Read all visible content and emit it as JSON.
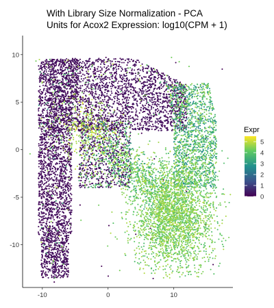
{
  "chart_data": {
    "type": "scatter",
    "title": "With Library Size Normalization - PCA",
    "subtitle": "Units for Acox2 Expression: log10(CPM + 1)",
    "xlabel": "",
    "ylabel": "",
    "xlim": [
      -13,
      19
    ],
    "ylim": [
      -14.5,
      12
    ],
    "x_ticks": [
      -10,
      0,
      10
    ],
    "y_ticks": [
      -10,
      -5,
      0,
      5,
      10
    ],
    "grid": false,
    "colorbar": {
      "title": "Expr",
      "min": 0,
      "max": 5.5,
      "ticks": [
        0,
        1,
        2,
        3,
        4,
        5
      ],
      "colors": [
        "#440154",
        "#3b528b",
        "#21908d",
        "#5dc963",
        "#fde725"
      ],
      "placement": "right"
    },
    "clusters": [
      {
        "region": "left-column",
        "x_range": [
          -10.5,
          -4.5
        ],
        "y_range": [
          -13.5,
          9.5
        ],
        "expr": 0
      },
      {
        "region": "top-band",
        "x_range": [
          -9,
          12
        ],
        "y_range": [
          2,
          10
        ],
        "expr": 0
      },
      {
        "region": "bottom-right-lobe",
        "center": [
          10,
          -7
        ],
        "expr": 4.4
      },
      {
        "region": "right-arm",
        "center": [
          14,
          0
        ],
        "expr": 3.2
      },
      {
        "region": "upper-left-yellow",
        "center": [
          -3.5,
          2
        ],
        "expr": 5.0
      }
    ]
  }
}
